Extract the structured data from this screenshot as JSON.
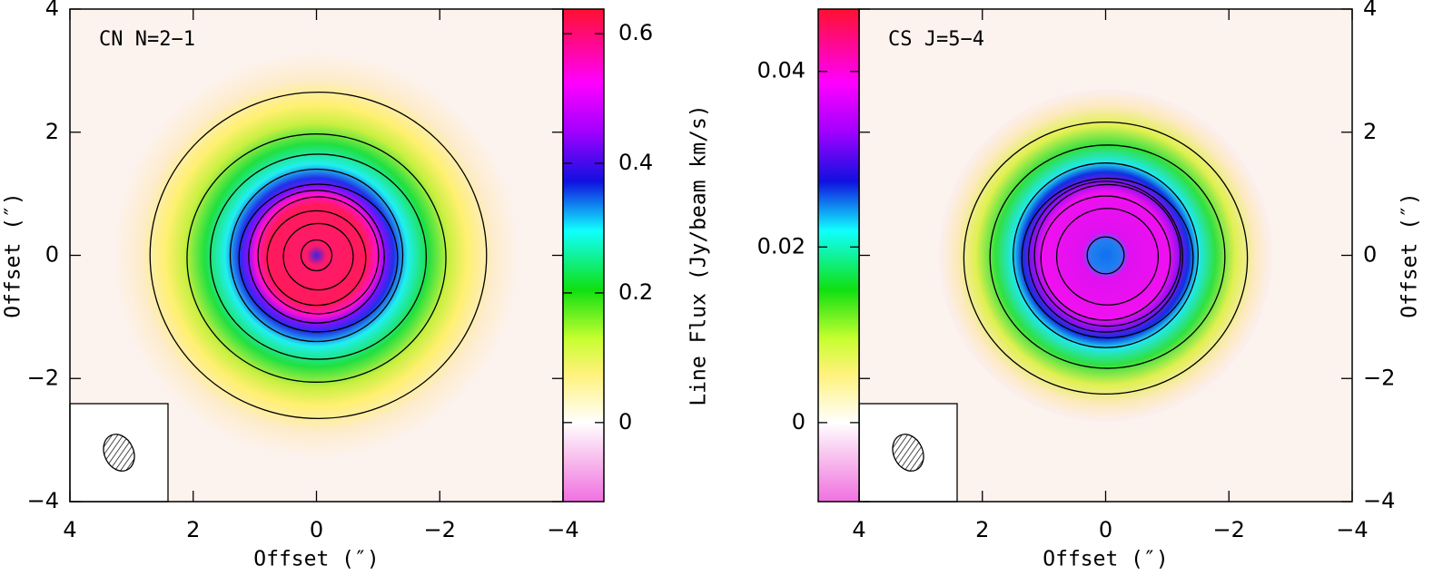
{
  "chart_data": [
    {
      "type": "heatmap",
      "title": "CN N=2−1",
      "xlabel": "Offset (″)",
      "ylabel": "Offset (″)",
      "colorbar_label": "Line Flux (Jy/beam km/s)",
      "xlim": [
        4,
        -4
      ],
      "ylim": [
        -4,
        4
      ],
      "xticks": [
        4,
        2,
        0,
        {
          "value": -2,
          "label": "−2"
        },
        {
          "value": -4,
          "label": "−4"
        }
      ],
      "yticks": [
        {
          "value": -4,
          "label": "−4"
        },
        {
          "value": -2,
          "label": "−2"
        },
        0,
        2,
        4
      ],
      "clim": [
        -0.122,
        0.638
      ],
      "cticks": [
        0,
        0.2,
        0.4,
        0.6
      ],
      "colorbar_side": "right",
      "yaxis_side": "left"
    },
    {
      "type": "heatmap",
      "title": "CS J=5−4",
      "xlabel": "Offset (″)",
      "ylabel": "Offset (″)",
      "xlim": [
        4,
        -4
      ],
      "ylim": [
        -4,
        4
      ],
      "xticks": [
        4,
        2,
        0,
        {
          "value": -2,
          "label": "−2"
        },
        {
          "value": -4,
          "label": "−4"
        }
      ],
      "yticks": [
        {
          "value": -4,
          "label": "−4"
        },
        {
          "value": -2,
          "label": "−2"
        },
        0,
        2,
        4
      ],
      "clim": [
        -0.009,
        0.0471
      ],
      "cticks": [
        0,
        0.02,
        0.04
      ],
      "colorbar_side": "left",
      "yaxis_side": "right"
    }
  ]
}
